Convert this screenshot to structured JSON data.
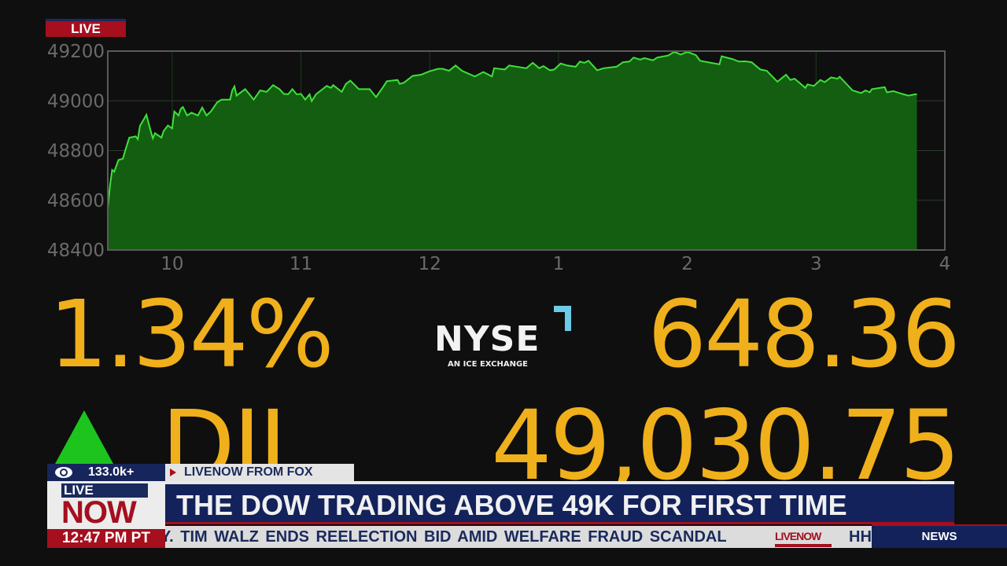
{
  "badge": {
    "live": "LIVE"
  },
  "chart_data": {
    "type": "area",
    "title": "",
    "xlabel": "",
    "ylabel": "",
    "ylim": [
      48400,
      49200
    ],
    "xlim": [
      "9:30",
      "4:00"
    ],
    "yticks": [
      "49200",
      "49000",
      "48800",
      "48600",
      "48400"
    ],
    "xticks": [
      "10",
      "11",
      "12",
      "1",
      "2",
      "3",
      "4"
    ],
    "grid": true,
    "line_color": "#3ee03a",
    "fill_color": "#135e10",
    "points": [
      [
        "9:30",
        48567
      ],
      [
        "9:31",
        48656
      ],
      [
        "9:32",
        48722
      ],
      [
        "9:33",
        48715
      ],
      [
        "9:35",
        48762
      ],
      [
        "9:37",
        48767
      ],
      [
        "9:38",
        48796
      ],
      [
        "9:40",
        48852
      ],
      [
        "9:43",
        48857
      ],
      [
        "9:44",
        48846
      ],
      [
        "9:45",
        48899
      ],
      [
        "9:47",
        48929
      ],
      [
        "9:48",
        48944
      ],
      [
        "9:50",
        48878
      ],
      [
        "9:51",
        48849
      ],
      [
        "9:52",
        48870
      ],
      [
        "9:55",
        48852
      ],
      [
        "9:56",
        48878
      ],
      [
        "9:58",
        48901
      ],
      [
        "10:00",
        48889
      ],
      [
        "10:01",
        48957
      ],
      [
        "10:03",
        48941
      ],
      [
        "10:04",
        48968
      ],
      [
        "10:05",
        48975
      ],
      [
        "10:07",
        48941
      ],
      [
        "10:09",
        48952
      ],
      [
        "10:12",
        48941
      ],
      [
        "10:14",
        48973
      ],
      [
        "10:16",
        48941
      ],
      [
        "10:18",
        48957
      ],
      [
        "10:21",
        48994
      ],
      [
        "10:23",
        49005
      ],
      [
        "10:27",
        49005
      ],
      [
        "10:28",
        49042
      ],
      [
        "10:29",
        49058
      ],
      [
        "10:30",
        49021
      ],
      [
        "10:34",
        49047
      ],
      [
        "10:36",
        49026
      ],
      [
        "10:38",
        49005
      ],
      [
        "10:41",
        49042
      ],
      [
        "10:44",
        49036
      ],
      [
        "10:47",
        49063
      ],
      [
        "10:50",
        49047
      ],
      [
        "10:52",
        49028
      ],
      [
        "10:54",
        49026
      ],
      [
        "10:56",
        49047
      ],
      [
        "10:58",
        49026
      ],
      [
        "11:00",
        49028
      ],
      [
        "11:02",
        49005
      ],
      [
        "11:04",
        49026
      ],
      [
        "11:05",
        48999
      ],
      [
        "11:07",
        49026
      ],
      [
        "11:12",
        49060
      ],
      [
        "11:14",
        49052
      ],
      [
        "11:15",
        49063
      ],
      [
        "11:19",
        49036
      ],
      [
        "11:21",
        49068
      ],
      [
        "11:23",
        49081
      ],
      [
        "11:27",
        49047
      ],
      [
        "11:32",
        49047
      ],
      [
        "11:35",
        49015
      ],
      [
        "11:38",
        49052
      ],
      [
        "11:40",
        49079
      ],
      [
        "11:45",
        49084
      ],
      [
        "11:46",
        49068
      ],
      [
        "11:48",
        49073
      ],
      [
        "11:52",
        49100
      ],
      [
        "11:56",
        49105
      ],
      [
        "12:00",
        49119
      ],
      [
        "12:04",
        49129
      ],
      [
        "12:06",
        49129
      ],
      [
        "12:09",
        49121
      ],
      [
        "12:12",
        49142
      ],
      [
        "12:15",
        49121
      ],
      [
        "12:21",
        49098
      ],
      [
        "12:25",
        49116
      ],
      [
        "12:29",
        49098
      ],
      [
        "12:30",
        49131
      ],
      [
        "12:35",
        49126
      ],
      [
        "12:37",
        49142
      ],
      [
        "12:45",
        49131
      ],
      [
        "12:48",
        49153
      ],
      [
        "12:51",
        49131
      ],
      [
        "12:53",
        49140
      ],
      [
        "12:56",
        49123
      ],
      [
        "12:58",
        49126
      ],
      [
        "1:01",
        49150
      ],
      [
        "1:04",
        49142
      ],
      [
        "1:08",
        49137
      ],
      [
        "1:10",
        49158
      ],
      [
        "1:12",
        49153
      ],
      [
        "1:14",
        49161
      ],
      [
        "1:18",
        49123
      ],
      [
        "1:21",
        49131
      ],
      [
        "1:27",
        49137
      ],
      [
        "1:30",
        49155
      ],
      [
        "1:33",
        49158
      ],
      [
        "1:35",
        49174
      ],
      [
        "1:38",
        49166
      ],
      [
        "1:40",
        49172
      ],
      [
        "1:44",
        49163
      ],
      [
        "1:46",
        49174
      ],
      [
        "1:51",
        49182
      ],
      [
        "1:54",
        49197
      ],
      [
        "1:57",
        49186
      ],
      [
        "2:00",
        49197
      ],
      [
        "2:04",
        49184
      ],
      [
        "2:06",
        49161
      ],
      [
        "2:11",
        49153
      ],
      [
        "2:15",
        49147
      ],
      [
        "2:16",
        49179
      ],
      [
        "2:21",
        49168
      ],
      [
        "2:24",
        49158
      ],
      [
        "2:27",
        49159
      ],
      [
        "2:30",
        49155
      ],
      [
        "2:34",
        49126
      ],
      [
        "2:37",
        49121
      ],
      [
        "2:42",
        49077
      ],
      [
        "2:46",
        49105
      ],
      [
        "2:48",
        49084
      ],
      [
        "2:50",
        49089
      ],
      [
        "2:55",
        49052
      ],
      [
        "2:56",
        49066
      ],
      [
        "2:59",
        49060
      ],
      [
        "3:02",
        49084
      ],
      [
        "3:04",
        49075
      ],
      [
        "3:07",
        49094
      ],
      [
        "3:10",
        49089
      ],
      [
        "3:11",
        49097
      ],
      [
        "3:17",
        49042
      ],
      [
        "3:21",
        49031
      ],
      [
        "3:23",
        49042
      ],
      [
        "3:25",
        49034
      ],
      [
        "3:26",
        49047
      ],
      [
        "3:32",
        49055
      ],
      [
        "3:33",
        49034
      ],
      [
        "3:36",
        49039
      ],
      [
        "3:40",
        49028
      ],
      [
        "3:43",
        49021
      ],
      [
        "3:46",
        49026
      ],
      [
        "3:47",
        49026
      ]
    ]
  },
  "quote": {
    "percent_change": "1.34%",
    "point_change": "648.36",
    "symbol": "DJI",
    "last": "49,030.75",
    "direction": "up",
    "up_color": "#1ec41e",
    "number_color": "#f0b01b"
  },
  "exchange_logo": {
    "name": "NYSE",
    "tagline": "AN ICE EXCHANGE"
  },
  "lower_third": {
    "viewers": "133.0k+",
    "source": "LIVENOW FROM FOX",
    "headline": "THE DOW TRADING ABOVE 49K FOR FIRST TIME",
    "logo_live": "LIVE",
    "logo_now": "NOW",
    "clock": "12:47 PM PT",
    "ticker": "Y. TIM WALZ ENDS REELECTION BID AMID WELFARE FRAUD SCANDAL",
    "ticker_logo": "LIVENOW",
    "ticker_next": "HH",
    "section": "NEWS"
  }
}
